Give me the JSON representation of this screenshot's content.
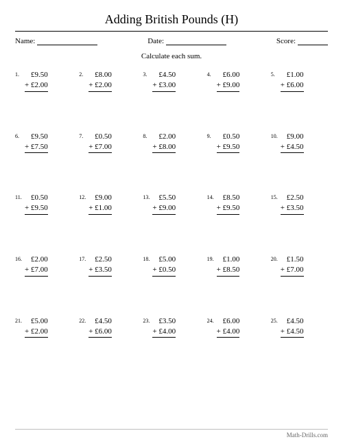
{
  "title": "Adding British Pounds (H)",
  "meta": {
    "name_label": "Name:",
    "date_label": "Date:",
    "score_label": "Score:"
  },
  "instruction": "Calculate each sum.",
  "currency_symbol": "£",
  "operator": "+",
  "colors": {
    "background": "#ffffff",
    "text": "#000000",
    "rule": "#000000",
    "footer_text": "#666666",
    "footer_rule": "#bdbdbd"
  },
  "typography": {
    "family": "Times New Roman, serif",
    "title_fontsize_pt": 14,
    "body_fontsize_pt": 8,
    "problem_number_fontsize_pt": 6,
    "footer_fontsize_pt": 7
  },
  "layout": {
    "columns": 5,
    "rows": 5
  },
  "problems": [
    {
      "n": "1.",
      "a": "£9.50",
      "b": "£2.00"
    },
    {
      "n": "2.",
      "a": "£8.00",
      "b": "£2.00"
    },
    {
      "n": "3.",
      "a": "£4.50",
      "b": "£3.00"
    },
    {
      "n": "4.",
      "a": "£6.00",
      "b": "£9.00"
    },
    {
      "n": "5.",
      "a": "£1.00",
      "b": "£6.00"
    },
    {
      "n": "6.",
      "a": "£9.50",
      "b": "£7.50"
    },
    {
      "n": "7.",
      "a": "£0.50",
      "b": "£7.00"
    },
    {
      "n": "8.",
      "a": "£2.00",
      "b": "£8.00"
    },
    {
      "n": "9.",
      "a": "£0.50",
      "b": "£9.50"
    },
    {
      "n": "10.",
      "a": "£9.00",
      "b": "£4.50"
    },
    {
      "n": "11.",
      "a": "£0.50",
      "b": "£9.50"
    },
    {
      "n": "12.",
      "a": "£9.00",
      "b": "£1.00"
    },
    {
      "n": "13.",
      "a": "£5.50",
      "b": "£9.00"
    },
    {
      "n": "14.",
      "a": "£8.50",
      "b": "£9.50"
    },
    {
      "n": "15.",
      "a": "£2.50",
      "b": "£3.50"
    },
    {
      "n": "16.",
      "a": "£2.00",
      "b": "£7.00"
    },
    {
      "n": "17.",
      "a": "£2.50",
      "b": "£3.50"
    },
    {
      "n": "18.",
      "a": "£5.00",
      "b": "£0.50"
    },
    {
      "n": "19.",
      "a": "£1.00",
      "b": "£8.50"
    },
    {
      "n": "20.",
      "a": "£1.50",
      "b": "£7.00"
    },
    {
      "n": "21.",
      "a": "£5.00",
      "b": "£2.00"
    },
    {
      "n": "22.",
      "a": "£4.50",
      "b": "£6.00"
    },
    {
      "n": "23.",
      "a": "£3.50",
      "b": "£4.00"
    },
    {
      "n": "24.",
      "a": "£6.00",
      "b": "£4.00"
    },
    {
      "n": "25.",
      "a": "£4.50",
      "b": "£4.50"
    }
  ],
  "footer": "Math-Drills.com"
}
